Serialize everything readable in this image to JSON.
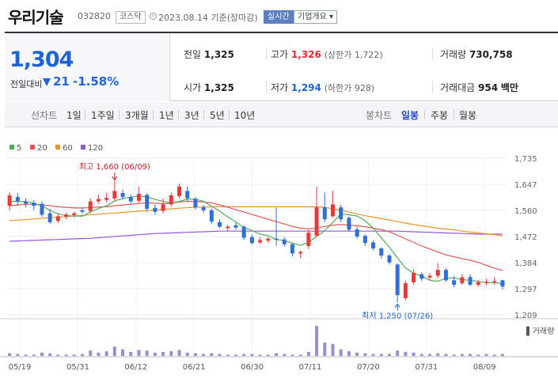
{
  "header": {
    "name": "우리기술",
    "code": "032820",
    "market": "코스닥",
    "date": "2023.08.14 기준(장마감)",
    "realtime": "실시간",
    "company": "기업개요"
  },
  "price": {
    "current": "1,304",
    "change_label": "전일대비",
    "change": "21",
    "rate": "-1.58%"
  },
  "metrics": {
    "prev_label": "전일",
    "prev_value": "1,325",
    "high_label": "고가",
    "high_value": "1,326",
    "high_extra": "(상한가 1,722)",
    "volume_label": "거래량",
    "volume_value": "730,758",
    "open_label": "시가",
    "open_value": "1,325",
    "low_label": "저가",
    "low_value": "1,294",
    "low_extra": "(하한가 928)",
    "amount_label": "거래대금",
    "amount_value": "954",
    "amount_unit": "백만"
  },
  "toolbar": {
    "line_chart": "선차트",
    "periods": [
      "1일",
      "1주일",
      "3개월",
      "1년",
      "3년",
      "5년",
      "10년"
    ],
    "candle_chart": "봉차트",
    "candle_periods": [
      "일봉",
      "주봉",
      "월봉"
    ],
    "selected": "일봉"
  },
  "colors": {
    "up": "#e63a3a",
    "down": "#2f6fd8",
    "ma5": "#4fae5a",
    "ma20": "#e25353",
    "ma60": "#f0932b",
    "ma120": "#9358d8"
  },
  "chart_data": {
    "type": "candlestick",
    "legend": [
      "5",
      "20",
      "60",
      "120"
    ],
    "volume_label": "거래량",
    "x_ticks": [
      "05/19",
      "05/31",
      "06/12",
      "06/21",
      "06/30",
      "07/11",
      "07/20",
      "07/31",
      "08/09"
    ],
    "y_ticks": [
      "1,735",
      "1,647",
      "1,560",
      "1,472",
      "1,384",
      "1,297",
      "1,209"
    ],
    "ylim": [
      1209,
      1735
    ],
    "annotations": {
      "high": "최고 1,660 (06/09)",
      "low": "최저 1,250 (07/26)"
    },
    "candles": [
      {
        "o": 1575,
        "c": 1610,
        "h": 1620,
        "l": 1560
      },
      {
        "o": 1605,
        "c": 1590,
        "h": 1618,
        "l": 1575
      },
      {
        "o": 1590,
        "c": 1582,
        "h": 1600,
        "l": 1570
      },
      {
        "o": 1585,
        "c": 1575,
        "h": 1594,
        "l": 1560
      },
      {
        "o": 1582,
        "c": 1545,
        "h": 1590,
        "l": 1538
      },
      {
        "o": 1550,
        "c": 1520,
        "h": 1565,
        "l": 1515
      },
      {
        "o": 1524,
        "c": 1540,
        "h": 1550,
        "l": 1518
      },
      {
        "o": 1538,
        "c": 1546,
        "h": 1552,
        "l": 1530
      },
      {
        "o": 1544,
        "c": 1550,
        "h": 1556,
        "l": 1536
      },
      {
        "o": 1560,
        "c": 1555,
        "h": 1568,
        "l": 1548
      },
      {
        "o": 1558,
        "c": 1590,
        "h": 1600,
        "l": 1550
      },
      {
        "o": 1590,
        "c": 1598,
        "h": 1612,
        "l": 1582
      },
      {
        "o": 1595,
        "c": 1602,
        "h": 1620,
        "l": 1585
      },
      {
        "o": 1600,
        "c": 1625,
        "h": 1660,
        "l": 1590
      },
      {
        "o": 1618,
        "c": 1605,
        "h": 1630,
        "l": 1595
      },
      {
        "o": 1605,
        "c": 1590,
        "h": 1612,
        "l": 1580
      },
      {
        "o": 1592,
        "c": 1615,
        "h": 1640,
        "l": 1585
      },
      {
        "o": 1612,
        "c": 1565,
        "h": 1618,
        "l": 1555
      },
      {
        "o": 1568,
        "c": 1555,
        "h": 1580,
        "l": 1545
      },
      {
        "o": 1558,
        "c": 1580,
        "h": 1600,
        "l": 1550
      },
      {
        "o": 1580,
        "c": 1610,
        "h": 1620,
        "l": 1572
      },
      {
        "o": 1608,
        "c": 1640,
        "h": 1650,
        "l": 1600
      },
      {
        "o": 1625,
        "c": 1600,
        "h": 1640,
        "l": 1590
      },
      {
        "o": 1598,
        "c": 1570,
        "h": 1605,
        "l": 1562
      },
      {
        "o": 1570,
        "c": 1560,
        "h": 1578,
        "l": 1550
      },
      {
        "o": 1560,
        "c": 1522,
        "h": 1566,
        "l": 1514
      },
      {
        "o": 1520,
        "c": 1505,
        "h": 1530,
        "l": 1500
      },
      {
        "o": 1500,
        "c": 1505,
        "h": 1512,
        "l": 1492
      },
      {
        "o": 1510,
        "c": 1502,
        "h": 1520,
        "l": 1495
      },
      {
        "o": 1505,
        "c": 1468,
        "h": 1510,
        "l": 1460
      },
      {
        "o": 1470,
        "c": 1450,
        "h": 1478,
        "l": 1445
      },
      {
        "o": 1452,
        "c": 1460,
        "h": 1470,
        "l": 1446
      },
      {
        "o": 1458,
        "c": 1465,
        "h": 1470,
        "l": 1450
      },
      {
        "o": 1465,
        "c": 1462,
        "h": 1570,
        "l": 1440
      },
      {
        "o": 1462,
        "c": 1446,
        "h": 1470,
        "l": 1438
      },
      {
        "o": 1446,
        "c": 1415,
        "h": 1450,
        "l": 1405
      },
      {
        "o": 1415,
        "c": 1420,
        "h": 1425,
        "l": 1400
      },
      {
        "o": 1440,
        "c": 1485,
        "h": 1495,
        "l": 1430
      },
      {
        "o": 1475,
        "c": 1570,
        "h": 1640,
        "l": 1470
      },
      {
        "o": 1570,
        "c": 1530,
        "h": 1620,
        "l": 1520
      },
      {
        "o": 1540,
        "c": 1580,
        "h": 1625,
        "l": 1535
      },
      {
        "o": 1570,
        "c": 1530,
        "h": 1580,
        "l": 1520
      },
      {
        "o": 1535,
        "c": 1495,
        "h": 1540,
        "l": 1488
      },
      {
        "o": 1496,
        "c": 1472,
        "h": 1505,
        "l": 1465
      },
      {
        "o": 1474,
        "c": 1450,
        "h": 1480,
        "l": 1440
      },
      {
        "o": 1452,
        "c": 1432,
        "h": 1460,
        "l": 1425
      },
      {
        "o": 1432,
        "c": 1408,
        "h": 1436,
        "l": 1398
      },
      {
        "o": 1408,
        "c": 1385,
        "h": 1414,
        "l": 1378
      },
      {
        "o": 1378,
        "c": 1275,
        "h": 1382,
        "l": 1250
      },
      {
        "o": 1265,
        "c": 1315,
        "h": 1325,
        "l": 1258
      },
      {
        "o": 1318,
        "c": 1350,
        "h": 1362,
        "l": 1310
      },
      {
        "o": 1345,
        "c": 1330,
        "h": 1352,
        "l": 1322
      },
      {
        "o": 1334,
        "c": 1340,
        "h": 1350,
        "l": 1325
      },
      {
        "o": 1340,
        "c": 1360,
        "h": 1382,
        "l": 1332
      },
      {
        "o": 1360,
        "c": 1325,
        "h": 1365,
        "l": 1320
      },
      {
        "o": 1325,
        "c": 1310,
        "h": 1340,
        "l": 1302
      },
      {
        "o": 1315,
        "c": 1335,
        "h": 1346,
        "l": 1310
      },
      {
        "o": 1336,
        "c": 1310,
        "h": 1345,
        "l": 1305
      },
      {
        "o": 1310,
        "c": 1318,
        "h": 1326,
        "l": 1303
      },
      {
        "o": 1316,
        "c": 1320,
        "h": 1330,
        "l": 1308
      },
      {
        "o": 1318,
        "c": 1322,
        "h": 1336,
        "l": 1310
      },
      {
        "o": 1325,
        "c": 1304,
        "h": 1326,
        "l": 1294
      }
    ],
    "volume": [
      4,
      3,
      2,
      2,
      5,
      4,
      2,
      2,
      2,
      3,
      8,
      5,
      7,
      14,
      10,
      6,
      9,
      8,
      5,
      6,
      7,
      9,
      5,
      4,
      3,
      4,
      3,
      2,
      2,
      3,
      3,
      2,
      2,
      4,
      3,
      2,
      2,
      6,
      45,
      20,
      18,
      10,
      7,
      5,
      4,
      3,
      3,
      3,
      8,
      6,
      5,
      3,
      3,
      4,
      3,
      2,
      3,
      3,
      2,
      3,
      2,
      3
    ],
    "ma5": [
      1590,
      1590,
      1589,
      1584,
      1575,
      1560,
      1548,
      1542,
      1541,
      1540,
      1555,
      1566,
      1575,
      1591,
      1600,
      1604,
      1608,
      1605,
      1597,
      1590,
      1585,
      1590,
      1597,
      1598,
      1590,
      1574,
      1557,
      1538,
      1521,
      1502,
      1492,
      1480,
      1475,
      1462,
      1458,
      1450,
      1442,
      1452,
      1472,
      1492,
      1520,
      1548,
      1545,
      1541,
      1525,
      1500,
      1468,
      1436,
      1400,
      1366,
      1349,
      1339,
      1325,
      1322,
      1332,
      1333,
      1327,
      1325,
      1321,
      1317,
      1317,
      1314
    ],
    "ma20": [
      1575,
      1578,
      1580,
      1580,
      1578,
      1575,
      1572,
      1570,
      1568,
      1568,
      1569,
      1571,
      1572,
      1575,
      1578,
      1580,
      1583,
      1585,
      1584,
      1582,
      1584,
      1588,
      1590,
      1590,
      1588,
      1585,
      1578,
      1570,
      1562,
      1554,
      1546,
      1538,
      1530,
      1522,
      1514,
      1506,
      1500,
      1498,
      1500,
      1506,
      1510,
      1512,
      1510,
      1508,
      1505,
      1500,
      1495,
      1488,
      1476,
      1464,
      1452,
      1440,
      1430,
      1420,
      1410,
      1404,
      1398,
      1392,
      1385,
      1375,
      1366,
      1358
    ],
    "ma60": [
      1525,
      1527,
      1529,
      1531,
      1533,
      1535,
      1537,
      1539,
      1541,
      1543,
      1545,
      1547,
      1549,
      1551,
      1553,
      1555,
      1557,
      1559,
      1561,
      1563,
      1565,
      1567,
      1569,
      1570,
      1571,
      1572,
      1572,
      1572,
      1572,
      1572,
      1572,
      1572,
      1572,
      1572,
      1572,
      1572,
      1572,
      1572,
      1572,
      1570,
      1565,
      1560,
      1554,
      1548,
      1542,
      1537,
      1532,
      1527,
      1522,
      1517,
      1512,
      1508,
      1504,
      1500,
      1497,
      1494,
      1490,
      1487,
      1484,
      1481,
      1478,
      1475
    ],
    "ma120": [
      1456,
      1457,
      1458,
      1459,
      1460,
      1461,
      1462,
      1463,
      1464,
      1465,
      1466,
      1468,
      1470,
      1472,
      1474,
      1476,
      1478,
      1480,
      1482,
      1483,
      1484,
      1485,
      1486,
      1487,
      1488,
      1489,
      1490,
      1490,
      1490,
      1490,
      1490,
      1490,
      1490,
      1490,
      1490,
      1490,
      1490,
      1490,
      1490,
      1490,
      1490,
      1490,
      1490,
      1490,
      1490,
      1490,
      1490,
      1490,
      1490,
      1489,
      1488,
      1487,
      1486,
      1485,
      1484,
      1483,
      1482,
      1481,
      1480,
      1480,
      1480,
      1480
    ]
  }
}
